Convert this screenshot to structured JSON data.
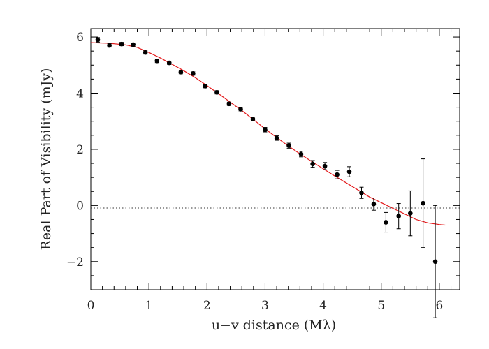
{
  "chart_data": {
    "type": "scatter",
    "title": "",
    "xlabel": "u−v distance (Mλ)",
    "ylabel": "Real Part of Visibility (mJy)",
    "xlim": [
      0,
      6.35
    ],
    "ylim": [
      -3,
      6.3
    ],
    "x_ticks": [
      0,
      1,
      2,
      3,
      4,
      5,
      6
    ],
    "y_ticks": [
      -2,
      0,
      2,
      4,
      6
    ],
    "x_tick_labels": [
      "0",
      "1",
      "2",
      "3",
      "4",
      "5",
      "6"
    ],
    "y_tick_labels": [
      "−2",
      "0",
      "2",
      "4",
      "6"
    ],
    "grid": false,
    "reference_line": {
      "y": 0,
      "style": "dotted"
    },
    "series": [
      {
        "kind": "points_with_errorbars",
        "color": "#000000",
        "points": [
          {
            "x": 0.12,
            "y": 5.9,
            "err": 0.08
          },
          {
            "x": 0.32,
            "y": 5.7,
            "err": 0.06
          },
          {
            "x": 0.53,
            "y": 5.75,
            "err": 0.06
          },
          {
            "x": 0.73,
            "y": 5.73,
            "err": 0.06
          },
          {
            "x": 0.94,
            "y": 5.45,
            "err": 0.06
          },
          {
            "x": 1.14,
            "y": 5.15,
            "err": 0.06
          },
          {
            "x": 1.35,
            "y": 5.08,
            "err": 0.06
          },
          {
            "x": 1.55,
            "y": 4.75,
            "err": 0.06
          },
          {
            "x": 1.76,
            "y": 4.7,
            "err": 0.06
          },
          {
            "x": 1.97,
            "y": 4.25,
            "err": 0.06
          },
          {
            "x": 2.17,
            "y": 4.03,
            "err": 0.06
          },
          {
            "x": 2.38,
            "y": 3.62,
            "err": 0.06
          },
          {
            "x": 2.58,
            "y": 3.43,
            "err": 0.06
          },
          {
            "x": 2.79,
            "y": 3.08,
            "err": 0.07
          },
          {
            "x": 3.0,
            "y": 2.7,
            "err": 0.08
          },
          {
            "x": 3.2,
            "y": 2.4,
            "err": 0.08
          },
          {
            "x": 3.41,
            "y": 2.13,
            "err": 0.09
          },
          {
            "x": 3.62,
            "y": 1.83,
            "err": 0.1
          },
          {
            "x": 3.82,
            "y": 1.48,
            "err": 0.12
          },
          {
            "x": 4.03,
            "y": 1.4,
            "err": 0.13
          },
          {
            "x": 4.24,
            "y": 1.1,
            "err": 0.15
          },
          {
            "x": 4.45,
            "y": 1.2,
            "err": 0.18
          },
          {
            "x": 4.66,
            "y": 0.45,
            "err": 0.2
          },
          {
            "x": 4.87,
            "y": 0.05,
            "err": 0.22
          },
          {
            "x": 5.08,
            "y": -0.6,
            "err": 0.35
          },
          {
            "x": 5.3,
            "y": -0.38,
            "err": 0.45
          },
          {
            "x": 5.5,
            "y": -0.28,
            "err": 0.8
          },
          {
            "x": 5.72,
            "y": 0.08,
            "err": 1.58
          },
          {
            "x": 5.93,
            "y": -2.0,
            "err": 2.0
          }
        ]
      },
      {
        "kind": "model_line",
        "color": "#e31a1c",
        "x": [
          0.0,
          0.3,
          0.6,
          0.8,
          1.0,
          1.2,
          1.4,
          1.6,
          1.8,
          2.0,
          2.2,
          2.4,
          2.6,
          2.8,
          3.0,
          3.2,
          3.4,
          3.6,
          3.8,
          4.0,
          4.2,
          4.4,
          4.6,
          4.8,
          5.0,
          5.2,
          5.4,
          5.6,
          5.8,
          6.0,
          6.1
        ],
        "y": [
          5.8,
          5.78,
          5.72,
          5.63,
          5.45,
          5.25,
          5.03,
          4.8,
          4.55,
          4.27,
          3.98,
          3.68,
          3.38,
          3.06,
          2.73,
          2.42,
          2.12,
          1.84,
          1.57,
          1.31,
          1.05,
          0.8,
          0.55,
          0.3,
          0.1,
          -0.1,
          -0.3,
          -0.5,
          -0.62,
          -0.68,
          -0.7
        ]
      }
    ]
  }
}
